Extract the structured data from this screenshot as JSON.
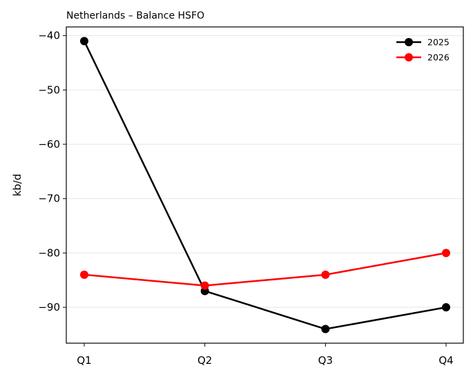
{
  "chart_data": {
    "type": "line",
    "title": "Netherlands – Balance HSFO",
    "xlabel": "",
    "ylabel": "kb/d",
    "categories": [
      "Q1",
      "Q2",
      "Q3",
      "Q4"
    ],
    "series": [
      {
        "name": "2025",
        "values": [
          -41,
          -87,
          -94,
          -90
        ],
        "color": "#000000"
      },
      {
        "name": "2026",
        "values": [
          -84,
          -86,
          -84,
          -80
        ],
        "color": "#ff0000"
      }
    ],
    "ylim": [
      -96.6,
      -38.4
    ],
    "yticks": [
      -40,
      -50,
      -60,
      -70,
      -80,
      -90
    ],
    "ytick_labels": [
      "−40",
      "−50",
      "−60",
      "−70",
      "−80",
      "−90"
    ],
    "grid": "horizontal",
    "legend_position": "upper-right",
    "marker": "circle"
  }
}
